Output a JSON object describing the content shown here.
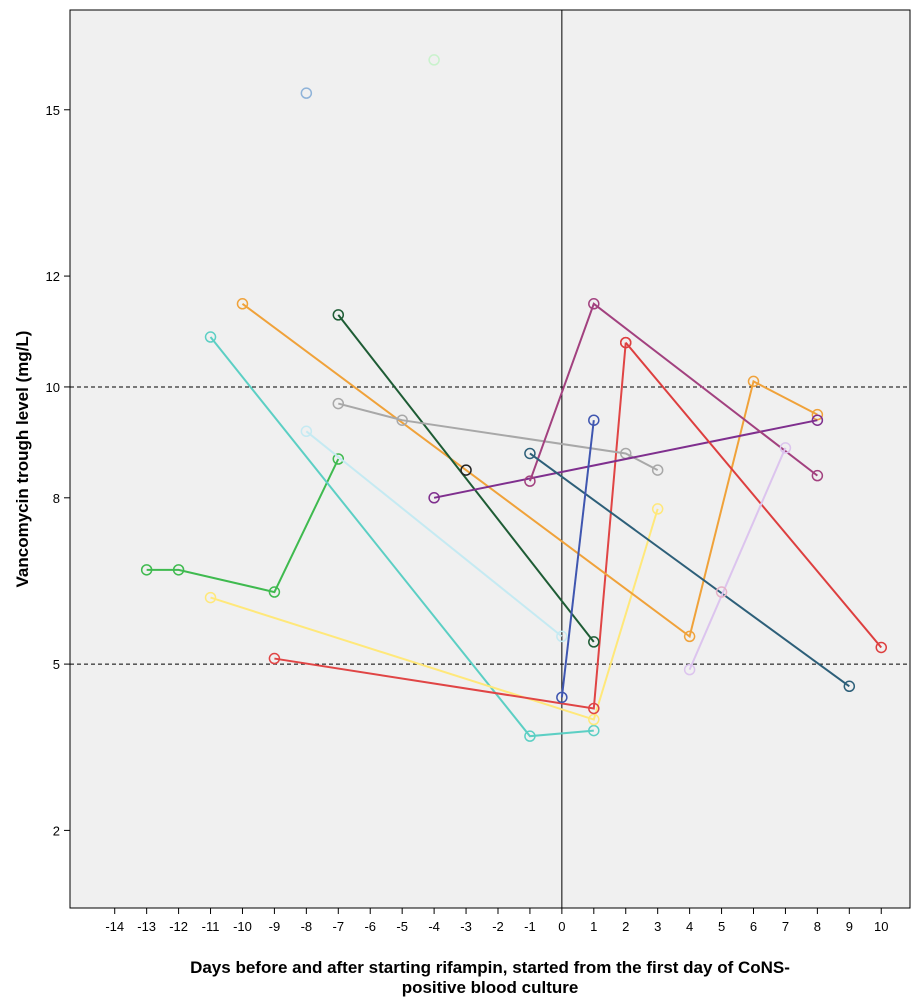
{
  "chart_data": {
    "type": "line",
    "title": "",
    "xlabel": "Days before and after starting rifampin, started from the first day of CoNS-positive blood culture",
    "ylabel": "Vancomycin trough level (mg/L)",
    "xlim": [
      -15.4,
      10.9
    ],
    "ylim": [
      0.6,
      16.8
    ],
    "x_ticks": [
      -14,
      -13,
      -12,
      -11,
      -10,
      -9,
      -8,
      -7,
      -6,
      -5,
      -4,
      -3,
      -2,
      -1,
      0,
      1,
      2,
      3,
      4,
      5,
      6,
      7,
      8,
      9,
      10
    ],
    "y_ticks": [
      2,
      5,
      8,
      10,
      12,
      15
    ],
    "reference_lines": [
      {
        "axis": "y",
        "value": 5,
        "style": "dashed"
      },
      {
        "axis": "y",
        "value": 10,
        "style": "dashed"
      },
      {
        "axis": "x",
        "value": 0,
        "style": "solid"
      }
    ],
    "grid": false,
    "legend": "none",
    "series": [
      {
        "color": "#3fba4f",
        "points": [
          [
            -13,
            6.7
          ],
          [
            -12,
            6.7
          ],
          [
            -9,
            6.3
          ],
          [
            -7,
            8.7
          ]
        ]
      },
      {
        "color": "#5ccfc4",
        "points": [
          [
            -11,
            10.9
          ],
          [
            -1,
            3.7
          ],
          [
            1,
            3.8
          ]
        ]
      },
      {
        "color": "#ffe87a",
        "points": [
          [
            -11,
            6.2
          ],
          [
            1,
            4.0
          ],
          [
            3,
            7.8
          ]
        ]
      },
      {
        "color": "#e04545",
        "points": [
          [
            -9,
            5.1
          ],
          [
            1,
            4.2
          ],
          [
            2,
            10.8
          ]
        ]
      },
      {
        "color": "#f0a23a",
        "points": [
          [
            -10,
            11.5
          ],
          [
            4,
            5.5
          ],
          [
            6,
            10.1
          ],
          [
            8,
            9.5
          ]
        ]
      },
      {
        "color": "#1e5c35",
        "points": [
          [
            -7,
            11.3
          ],
          [
            1,
            5.4
          ]
        ]
      },
      {
        "color": "#a8a8a8",
        "points": [
          [
            -7,
            9.7
          ],
          [
            -5,
            9.4
          ],
          [
            2,
            8.8
          ],
          [
            3,
            8.5
          ]
        ]
      },
      {
        "color": "#c5eaf2",
        "points": [
          [
            -8,
            9.2
          ],
          [
            0,
            5.5
          ]
        ]
      },
      {
        "color": "#7f2f8e",
        "points": [
          [
            -4,
            8.0
          ],
          [
            8,
            9.4
          ]
        ]
      },
      {
        "color": "#a2417f",
        "points": [
          [
            -1,
            8.3
          ],
          [
            1,
            11.5
          ],
          [
            8,
            8.4
          ]
        ]
      },
      {
        "color": "#2d5f79",
        "points": [
          [
            -1,
            8.8
          ],
          [
            9,
            4.6
          ]
        ]
      },
      {
        "color": "#3f56b0",
        "points": [
          [
            0,
            4.4
          ],
          [
            1,
            9.4
          ]
        ]
      },
      {
        "color": "#dd3f3f",
        "points": [
          [
            2,
            10.8
          ],
          [
            10,
            5.3
          ]
        ]
      },
      {
        "color": "#dcc4ee",
        "points": [
          [
            4,
            4.9
          ],
          [
            7,
            8.9
          ]
        ]
      },
      {
        "color": "#8fb3d9",
        "points": [
          [
            -8,
            15.3
          ]
        ]
      },
      {
        "color": "#c9f2cc",
        "points": [
          [
            -4,
            15.9
          ]
        ]
      },
      {
        "color": "#222222",
        "points": [
          [
            -3,
            8.5
          ]
        ]
      },
      {
        "color": "#e6b3c9",
        "points": [
          [
            5,
            6.3
          ]
        ]
      }
    ]
  }
}
